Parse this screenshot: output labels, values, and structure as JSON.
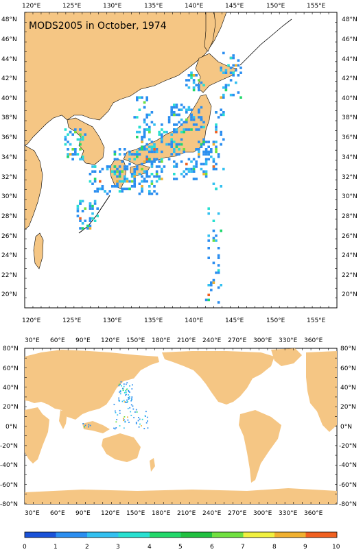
{
  "title": "MODS2005 in October, 1974",
  "top_map": {
    "lon_labels": [
      "120°E",
      "125°E",
      "130°E",
      "135°E",
      "140°E",
      "145°E",
      "150°E",
      "155°E"
    ],
    "lat_labels": [
      "20°N",
      "22°N",
      "24°N",
      "26°N",
      "28°N",
      "30°N",
      "32°N",
      "34°N",
      "36°N",
      "38°N",
      "40°N",
      "42°N",
      "44°N",
      "46°N",
      "48°N"
    ]
  },
  "bottom_map": {
    "lon_labels": [
      "30°E",
      "60°E",
      "90°E",
      "120°E",
      "150°E",
      "180°E",
      "210°E",
      "240°E",
      "270°E",
      "300°E",
      "330°E",
      "360°E"
    ],
    "lat_labels": [
      "80°N",
      "60°N",
      "40°N",
      "20°N",
      "0°N",
      "-20°N",
      "-40°N",
      "-60°N",
      "-80°N"
    ]
  },
  "colorbar": {
    "labels": [
      "0",
      "1",
      "2",
      "3",
      "4",
      "5",
      "6",
      "7",
      "8",
      "9",
      "10"
    ],
    "colors": [
      "#1a52d8",
      "#2b8ef0",
      "#33c0f0",
      "#28e0d0",
      "#22d86a",
      "#20c040",
      "#70e040",
      "#f0f040",
      "#f0b030",
      "#f06020"
    ]
  },
  "colors": {
    "land": "#f5c684",
    "ocean": "#ffffff",
    "frame": "#000000"
  }
}
